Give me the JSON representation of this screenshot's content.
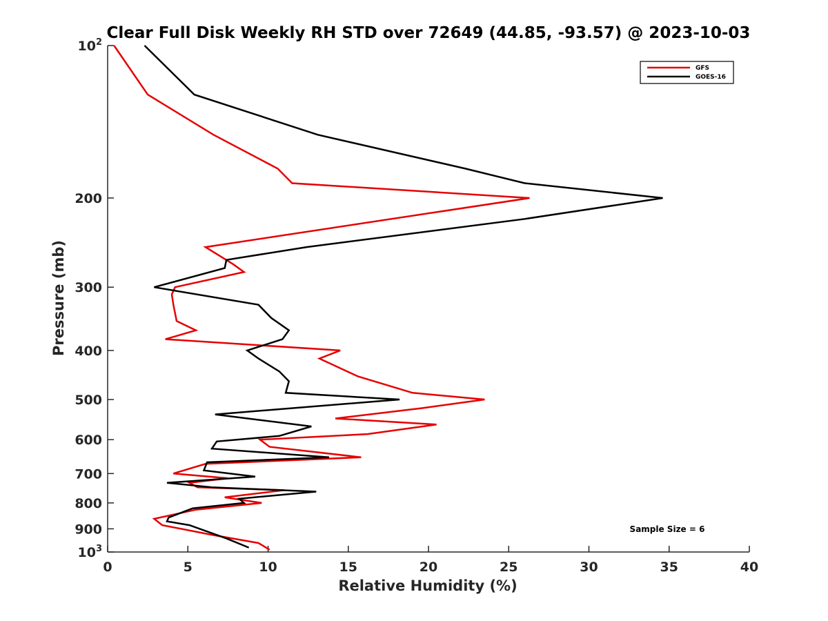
{
  "chart_data": {
    "type": "line",
    "title": "Clear Full Disk Weekly RH STD over 72649 (44.85, -93.57) @ 2023-10-03",
    "xlabel": "Relative Humidity (%)",
    "ylabel": "Pressure (mb)",
    "xlim": [
      0,
      40
    ],
    "ylim": [
      100,
      1000
    ],
    "yscale": "log",
    "yreversed": true,
    "grid": false,
    "legend_position": "top-right",
    "x_ticks": [
      "0",
      "5",
      "10",
      "15",
      "20",
      "25",
      "30",
      "35",
      "40"
    ],
    "y_ticks": [
      {
        "value": 100,
        "base": "10",
        "exp": "2"
      },
      {
        "value": 200,
        "label": "200"
      },
      {
        "value": 300,
        "label": "300"
      },
      {
        "value": 400,
        "label": "400"
      },
      {
        "value": 500,
        "label": "500"
      },
      {
        "value": 600,
        "label": "600"
      },
      {
        "value": 700,
        "label": "700"
      },
      {
        "value": 800,
        "label": "800"
      },
      {
        "value": 900,
        "label": "900"
      },
      {
        "value": 1000,
        "base": "10",
        "exp": "3"
      }
    ],
    "series": [
      {
        "name": "GFS",
        "color": "#e60000",
        "points": [
          [
            0.4,
            100
          ],
          [
            2.5,
            125
          ],
          [
            6.6,
            150
          ],
          [
            10.6,
            175
          ],
          [
            11.5,
            187
          ],
          [
            26.3,
            200
          ],
          [
            6.1,
            250
          ],
          [
            7.8,
            270
          ],
          [
            8.5,
            280
          ],
          [
            4.2,
            300
          ],
          [
            4.0,
            310
          ],
          [
            4.1,
            325
          ],
          [
            4.3,
            350
          ],
          [
            5.5,
            365
          ],
          [
            3.6,
            380
          ],
          [
            14.5,
            400
          ],
          [
            13.2,
            415
          ],
          [
            15.6,
            450
          ],
          [
            19.0,
            485
          ],
          [
            23.5,
            500
          ],
          [
            19.6,
            520
          ],
          [
            14.2,
            545
          ],
          [
            20.5,
            560
          ],
          [
            16.2,
            585
          ],
          [
            9.5,
            600
          ],
          [
            10.1,
            620
          ],
          [
            15.8,
            650
          ],
          [
            6.1,
            670
          ],
          [
            4.1,
            700
          ],
          [
            7.5,
            715
          ],
          [
            5.1,
            730
          ],
          [
            5.6,
            745
          ],
          [
            11.0,
            755
          ],
          [
            7.3,
            780
          ],
          [
            9.6,
            800
          ],
          [
            5.5,
            825
          ],
          [
            2.9,
            860
          ],
          [
            3.4,
            885
          ],
          [
            6.5,
            925
          ],
          [
            9.4,
            960
          ],
          [
            10.1,
            990
          ]
        ]
      },
      {
        "name": "GOES-16",
        "color": "#000000",
        "points": [
          [
            2.3,
            100
          ],
          [
            5.4,
            125
          ],
          [
            13.1,
            150
          ],
          [
            22.3,
            175
          ],
          [
            26.0,
            187
          ],
          [
            34.6,
            200
          ],
          [
            26.0,
            220
          ],
          [
            12.4,
            250
          ],
          [
            7.4,
            265
          ],
          [
            7.3,
            275
          ],
          [
            2.9,
            300
          ],
          [
            9.4,
            325
          ],
          [
            10.2,
            345
          ],
          [
            11.3,
            365
          ],
          [
            10.9,
            380
          ],
          [
            8.7,
            400
          ],
          [
            9.4,
            415
          ],
          [
            10.7,
            440
          ],
          [
            11.3,
            460
          ],
          [
            11.1,
            485
          ],
          [
            18.2,
            500
          ],
          [
            6.7,
            535
          ],
          [
            12.7,
            565
          ],
          [
            10.7,
            590
          ],
          [
            6.8,
            605
          ],
          [
            6.5,
            625
          ],
          [
            13.8,
            650
          ],
          [
            6.2,
            665
          ],
          [
            6.0,
            690
          ],
          [
            9.2,
            710
          ],
          [
            3.7,
            730
          ],
          [
            6.5,
            745
          ],
          [
            13.0,
            760
          ],
          [
            8.2,
            785
          ],
          [
            8.5,
            800
          ],
          [
            5.3,
            820
          ],
          [
            3.8,
            855
          ],
          [
            3.7,
            870
          ],
          [
            5.1,
            885
          ],
          [
            7.4,
            940
          ],
          [
            8.8,
            980
          ]
        ]
      }
    ],
    "annotations": [
      {
        "text": "Sample Size = 6"
      }
    ]
  }
}
